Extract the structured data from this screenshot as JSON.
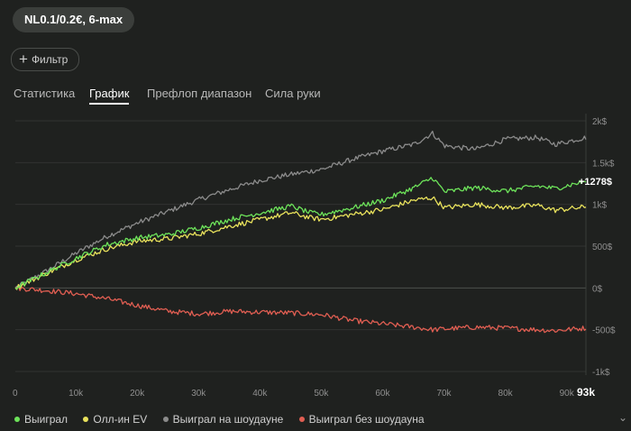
{
  "header": {
    "game_pill": "NL0.1/0.2€, 6-max",
    "filter_label": "Фильтр"
  },
  "tabs": [
    {
      "label": "Статистика",
      "active": false
    },
    {
      "label": "График",
      "active": true
    },
    {
      "label": "Префлоп диапазон",
      "active": false
    },
    {
      "label": "Сила руки",
      "active": false
    }
  ],
  "chart_data": {
    "type": "line",
    "x_ticks": [
      "0",
      "10k",
      "20k",
      "30k",
      "40k",
      "50k",
      "60k",
      "70k",
      "80k",
      "90k"
    ],
    "x_max_label": "93k",
    "y_ticks": [
      "2k$",
      "1.5k$",
      "1k$",
      "500$",
      "0$",
      "-500$",
      "-1k$"
    ],
    "ylim": [
      -1000,
      2000
    ],
    "xlim": [
      0,
      93000
    ],
    "end_label": "+1278$",
    "series": [
      {
        "name": "Выиграл",
        "color": "#6de35a",
        "points": [
          [
            0,
            0
          ],
          [
            5000,
            180
          ],
          [
            10000,
            360
          ],
          [
            15000,
            520
          ],
          [
            20000,
            600
          ],
          [
            25000,
            640
          ],
          [
            30000,
            720
          ],
          [
            35000,
            820
          ],
          [
            40000,
            900
          ],
          [
            45000,
            980
          ],
          [
            48000,
            900
          ],
          [
            50000,
            880
          ],
          [
            55000,
            960
          ],
          [
            60000,
            1050
          ],
          [
            65000,
            1200
          ],
          [
            68000,
            1320
          ],
          [
            70000,
            1150
          ],
          [
            75000,
            1200
          ],
          [
            80000,
            1160
          ],
          [
            85000,
            1220
          ],
          [
            88000,
            1190
          ],
          [
            93000,
            1278
          ]
        ]
      },
      {
        "name": "Олл-ин EV",
        "color": "#e9e25c",
        "points": [
          [
            0,
            0
          ],
          [
            5000,
            170
          ],
          [
            10000,
            340
          ],
          [
            15000,
            470
          ],
          [
            20000,
            560
          ],
          [
            25000,
            590
          ],
          [
            30000,
            650
          ],
          [
            35000,
            740
          ],
          [
            40000,
            820
          ],
          [
            45000,
            900
          ],
          [
            48000,
            840
          ],
          [
            50000,
            820
          ],
          [
            55000,
            880
          ],
          [
            60000,
            940
          ],
          [
            65000,
            1050
          ],
          [
            68000,
            1080
          ],
          [
            70000,
            960
          ],
          [
            75000,
            1000
          ],
          [
            80000,
            960
          ],
          [
            85000,
            990
          ],
          [
            88000,
            930
          ],
          [
            93000,
            970
          ]
        ]
      },
      {
        "name": "Выиграл на шоудауне",
        "color": "#8b8b8b",
        "points": [
          [
            0,
            0
          ],
          [
            5000,
            200
          ],
          [
            10000,
            420
          ],
          [
            15000,
            620
          ],
          [
            20000,
            780
          ],
          [
            25000,
            920
          ],
          [
            30000,
            1060
          ],
          [
            35000,
            1180
          ],
          [
            40000,
            1290
          ],
          [
            45000,
            1360
          ],
          [
            50000,
            1420
          ],
          [
            55000,
            1540
          ],
          [
            60000,
            1640
          ],
          [
            65000,
            1720
          ],
          [
            68000,
            1850
          ],
          [
            70000,
            1700
          ],
          [
            75000,
            1660
          ],
          [
            80000,
            1780
          ],
          [
            85000,
            1800
          ],
          [
            88000,
            1720
          ],
          [
            93000,
            1800
          ]
        ]
      },
      {
        "name": "Выиграл без шоудауна",
        "color": "#e05e52",
        "points": [
          [
            0,
            0
          ],
          [
            5000,
            -30
          ],
          [
            10000,
            -70
          ],
          [
            15000,
            -130
          ],
          [
            20000,
            -210
          ],
          [
            25000,
            -280
          ],
          [
            30000,
            -310
          ],
          [
            35000,
            -280
          ],
          [
            40000,
            -290
          ],
          [
            45000,
            -300
          ],
          [
            50000,
            -320
          ],
          [
            55000,
            -390
          ],
          [
            60000,
            -430
          ],
          [
            65000,
            -470
          ],
          [
            68000,
            -500
          ],
          [
            70000,
            -490
          ],
          [
            75000,
            -470
          ],
          [
            80000,
            -480
          ],
          [
            85000,
            -500
          ],
          [
            88000,
            -510
          ],
          [
            93000,
            -480
          ]
        ]
      }
    ]
  }
}
